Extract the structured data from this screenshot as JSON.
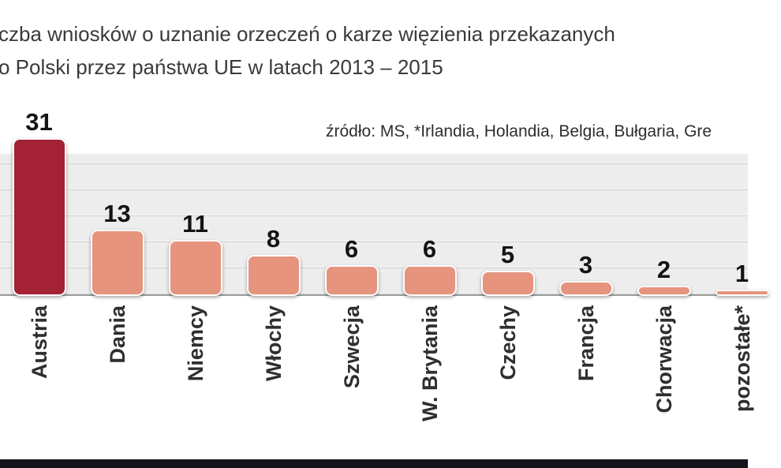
{
  "title": {
    "line1": "czba wniosków o uznanie orzeczeń o karze więzienia przekazanych",
    "line2": "o Polski przez państwa UE w latach 2013 – 2015"
  },
  "source": "źródło: MS, *Irlandia, Holandia, Belgia, Bułgaria, Gre",
  "colors": {
    "highlight_bar": "#a32235",
    "bar": "#e6947e",
    "axis": "#a0a0a0",
    "plot_background": "#ededed",
    "gridline": "#cfcfcf",
    "footer_strip": "#14141d",
    "value_text": "#141414",
    "label_text": "#2f2f2f"
  },
  "chart_data": {
    "type": "bar",
    "categories": [
      "Austria",
      "Dania",
      "Niemcy",
      "Włochy",
      "Szwecja",
      "W. Brytania",
      "Czechy",
      "Francja",
      "Chorwacja",
      "pozostałe*"
    ],
    "values": [
      31,
      13,
      11,
      8,
      6,
      6,
      5,
      3,
      2,
      1
    ],
    "title": "czba wniosków o uznanie orzeczeń o karze więzienia przekazanych o Polski przez państwa UE w latach 2013 – 2015",
    "source": "źródło: MS, *Irlandia, Holandia, Belgia, Bułgaria, Gre",
    "xlabel": "",
    "ylabel": "",
    "ylim": [
      0,
      31
    ],
    "gridline_step": 5,
    "grid": true,
    "legend": false,
    "highlight_category": "Austria",
    "value_labels_shown": true,
    "category_labels_rotation_deg": -90
  }
}
